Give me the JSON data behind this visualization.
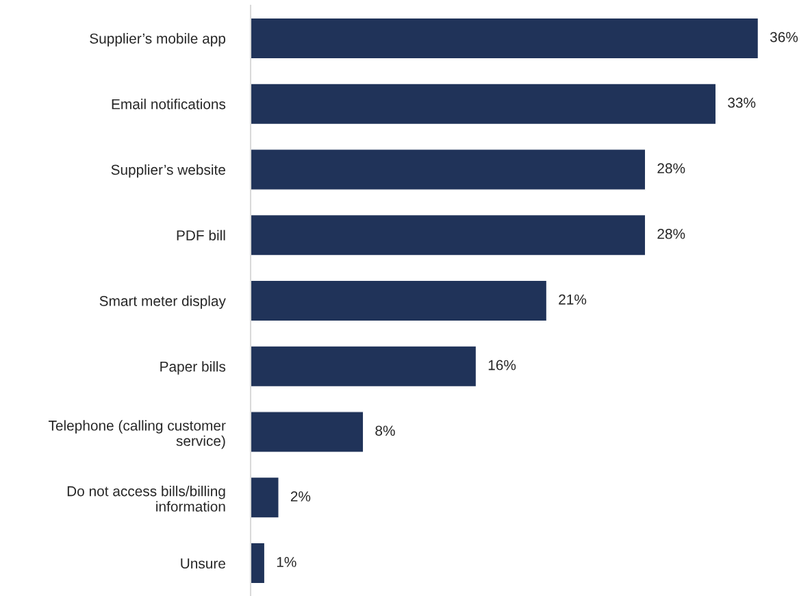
{
  "chart_data": {
    "type": "bar",
    "orientation": "horizontal",
    "categories": [
      "Supplier’s mobile app",
      "Email notifications",
      "Supplier’s website",
      "PDF bill",
      "Smart meter display",
      "Paper bills",
      "Telephone (calling customer\nservice)",
      "Do not access bills/billing\ninformation",
      "Unsure"
    ],
    "values": [
      36,
      33,
      28,
      28,
      21,
      16,
      8,
      2,
      1
    ],
    "value_labels": [
      "36%",
      "33%",
      "28%",
      "28%",
      "21%",
      "16%",
      "8%",
      "2%",
      "1%"
    ],
    "color": "#203359",
    "grid": false,
    "legend": false
  }
}
